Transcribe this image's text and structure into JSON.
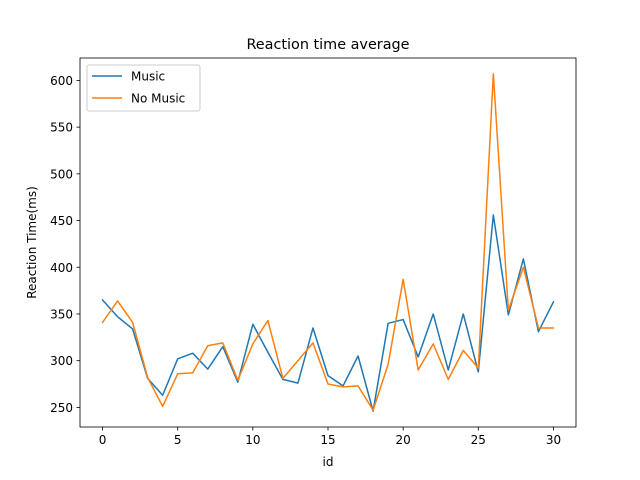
{
  "chart_data": {
    "type": "line",
    "title": "Reaction time average",
    "xlabel": "id",
    "ylabel": "Reaction Time(ms)",
    "xlim": [
      -1.5,
      31.5
    ],
    "ylim": [
      229,
      624
    ],
    "xticks": [
      0,
      5,
      10,
      15,
      20,
      25,
      30
    ],
    "yticks": [
      250,
      300,
      350,
      400,
      450,
      500,
      550,
      600
    ],
    "grid": false,
    "legend_position": "top-left",
    "x": [
      0,
      1,
      2,
      3,
      4,
      5,
      6,
      7,
      8,
      9,
      10,
      11,
      12,
      13,
      14,
      15,
      16,
      17,
      18,
      19,
      20,
      21,
      22,
      23,
      24,
      25,
      26,
      27,
      28,
      29,
      30
    ],
    "series": [
      {
        "name": "Music",
        "color": "#1f77b4",
        "values": [
          365,
          347,
          334,
          281,
          263,
          302,
          308,
          291,
          315,
          277,
          339,
          309,
          280,
          276,
          335,
          284,
          273,
          305,
          246,
          340,
          344,
          304,
          350,
          290,
          350,
          288,
          456,
          349,
          409,
          331,
          363
        ]
      },
      {
        "name": "No Music",
        "color": "#ff7f0e",
        "values": [
          341,
          364,
          341,
          282,
          251,
          286,
          287,
          316,
          319,
          279,
          318,
          343,
          281,
          300,
          319,
          275,
          272,
          273,
          247,
          296,
          387,
          290,
          318,
          280,
          311,
          292,
          607,
          354,
          400,
          335,
          335
        ]
      }
    ]
  }
}
